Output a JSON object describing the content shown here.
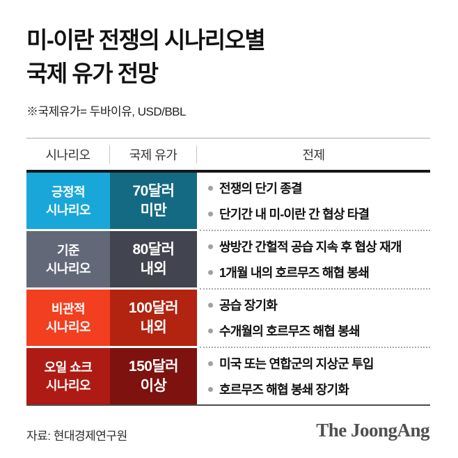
{
  "title_line1": "미-이란 전쟁의 시나리오별",
  "title_line2": "국제 유가 전망",
  "subtitle": "※국제유가= 두바이유, USD/BBL",
  "table": {
    "headers": [
      "시나리오",
      "국제 유가",
      "전제"
    ],
    "rows": [
      {
        "scenario_line1": "긍정적",
        "scenario_line2": "시나리오",
        "price_line1": "70달러",
        "price_line2": "미만",
        "premise1": "전쟁의 단기 종결",
        "premise2": "단기간 내 미-이란 간 협상 타결",
        "scenario_bg": "#18a7d8",
        "price_bg": "#156a83"
      },
      {
        "scenario_line1": "기준",
        "scenario_line2": "시나리오",
        "price_line1": "80달러",
        "price_line2": "내외",
        "premise1": "쌍방간 간헐적 공습 지속 후 협상 재개",
        "premise2": "1개월 내의 호르무즈 해협 봉쇄",
        "scenario_bg": "#636879",
        "price_bg": "#42454f"
      },
      {
        "scenario_line1": "비관적",
        "scenario_line2": "시나리오",
        "price_line1": "100달러",
        "price_line2": "내외",
        "premise1": "공습 장기화",
        "premise2": "수개월의 호르무즈 해협 봉쇄",
        "scenario_bg": "#f23f1f",
        "price_bg": "#b22310"
      },
      {
        "scenario_line1": "오일 쇼크",
        "scenario_line2": "시나리오",
        "price_line1": "150달러",
        "price_line2": "이상",
        "premise1": "미국 또는 연합군의 지상군 투입",
        "premise2": "호르무즈 해협 봉쇄 장기화",
        "scenario_bg": "#ae1b15",
        "price_bg": "#7d120f"
      }
    ]
  },
  "footer": {
    "source": "자료: 현대경제연구원",
    "logo": "The JoongAng"
  },
  "colors": {
    "positive_scenario": "#18a7d8",
    "positive_price": "#156a83",
    "base_scenario": "#636879",
    "base_price": "#42454f",
    "pessimistic_scenario": "#f23f1f",
    "pessimistic_price": "#b22310",
    "oilshock_scenario": "#ae1b15",
    "oilshock_price": "#7d120f"
  },
  "chart_data": {
    "type": "table",
    "title": "미-이란 전쟁의 시나리오별 국제 유가 전망",
    "note": "※국제유가= 두바이유, USD/BBL",
    "columns": [
      "시나리오",
      "국제 유가",
      "전제"
    ],
    "rows": [
      [
        "긍정적 시나리오",
        "70달러 미만",
        "전쟁의 단기 종결; 단기간 내 미-이란 간 협상 타결"
      ],
      [
        "기준 시나리오",
        "80달러 내외",
        "쌍방간 간헐적 공습 지속 후 협상 재개; 1개월 내의 호르무즈 해협 봉쇄"
      ],
      [
        "비관적 시나리오",
        "100달러 내외",
        "공습 장기화; 수개월의 호르무즈 해협 봉쇄"
      ],
      [
        "오일 쇼크 시나리오",
        "150달러 이상",
        "미국 또는 연합군의 지상군 투입; 호르무즈 해협 봉쇄 장기화"
      ]
    ],
    "source": "자료: 현대경제연구원"
  }
}
